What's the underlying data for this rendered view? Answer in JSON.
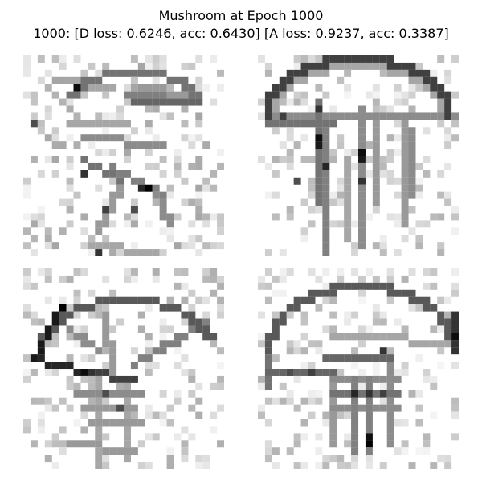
{
  "figure": {
    "title_line_1": "Mushroom at Epoch 1000",
    "title_line_2": "1000: [D loss: 0.6246, acc: 0.6430]  [A loss: 0.9237, acc: 0.3387]"
  },
  "colors": {
    "background": "#ffffff",
    "ink": "#000000"
  },
  "samples": [
    {
      "subject": "mushroom",
      "style": "grayscale pixel sketch, noisy"
    },
    {
      "subject": "mushroom",
      "style": "grayscale pixel sketch, noisy"
    },
    {
      "subject": "mushroom",
      "style": "grayscale pixel sketch, noisy"
    },
    {
      "subject": "mushroom",
      "style": "grayscale pixel sketch, noisy"
    }
  ]
}
